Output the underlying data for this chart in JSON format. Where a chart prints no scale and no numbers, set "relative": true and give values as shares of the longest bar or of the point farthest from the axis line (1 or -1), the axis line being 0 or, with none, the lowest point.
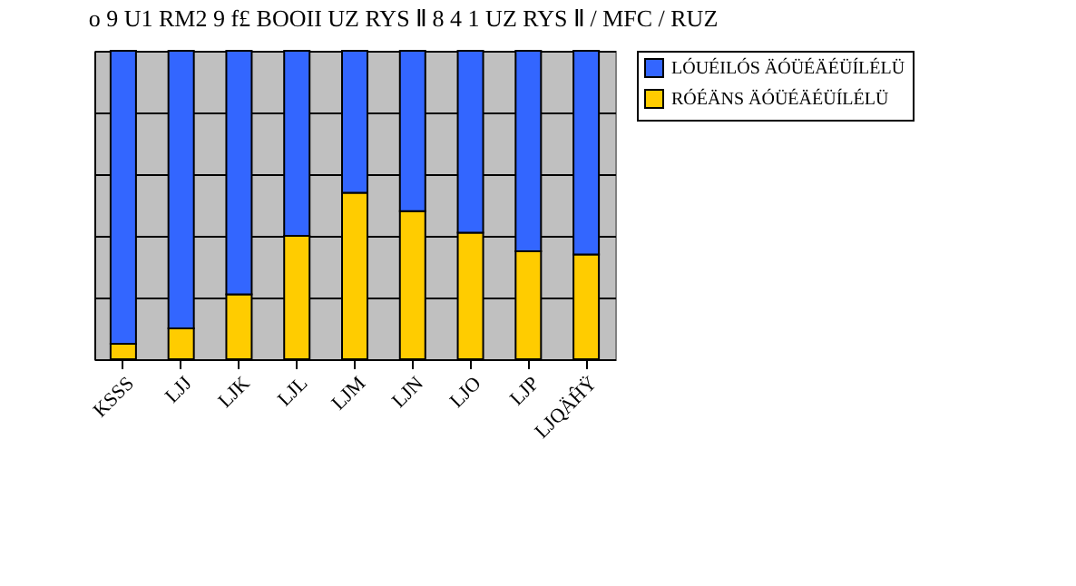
{
  "chart_data": {
    "type": "bar",
    "title": "o 9 U1 RM2 9 f£ BOOII UZ RYS Ⅱ 8 4 1 UZ RYS Ⅱ / MFC / RUZ",
    "categories": [
      "KSSS",
      "LJJ",
      "LJK",
      "LJL",
      "LJM",
      "LJN",
      "LJO",
      "LJP",
      "LJQÄĤŸ"
    ],
    "stacked": true,
    "relative": true,
    "series": [
      {
        "name": "RÓÉÄNS ÄÓÜÉÄÉÜÍLÉLÜ",
        "color": "#ffcc00",
        "values": [
          0.05,
          0.1,
          0.21,
          0.4,
          0.54,
          0.48,
          0.41,
          0.35,
          0.34
        ]
      },
      {
        "name": "LÓUÉILÓS ÄÓÜÉÄÉÜÍLÉLÜ",
        "color": "#3366ff",
        "values": [
          0.95,
          0.9,
          0.79,
          0.6,
          0.46,
          0.52,
          0.59,
          0.65,
          0.66
        ]
      }
    ],
    "grid": "y",
    "legend": "right"
  }
}
